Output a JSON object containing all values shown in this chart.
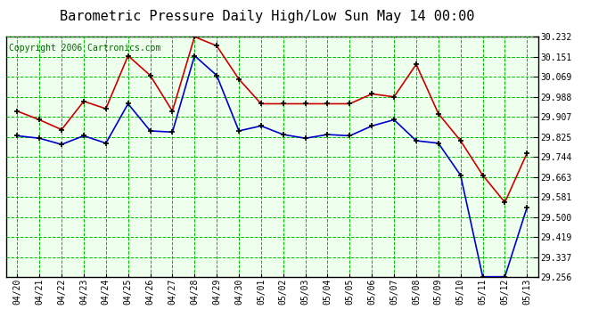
{
  "title": "Barometric Pressure Daily High/Low Sun May 14 00:00",
  "copyright": "Copyright 2006 Cartronics.com",
  "x_labels": [
    "04/20",
    "04/21",
    "04/22",
    "04/23",
    "04/24",
    "04/25",
    "04/26",
    "04/27",
    "04/28",
    "04/29",
    "04/30",
    "05/01",
    "05/02",
    "05/03",
    "05/04",
    "05/05",
    "05/06",
    "05/07",
    "05/08",
    "05/09",
    "05/10",
    "05/11",
    "05/12",
    "05/13"
  ],
  "high_values": [
    29.93,
    29.895,
    29.855,
    29.97,
    29.94,
    30.155,
    30.075,
    29.93,
    30.232,
    30.195,
    30.06,
    29.96,
    29.96,
    29.96,
    29.96,
    29.96,
    30.0,
    29.988,
    30.12,
    29.92,
    29.81,
    29.67,
    29.56,
    29.76
  ],
  "low_values": [
    29.83,
    29.82,
    29.795,
    29.83,
    29.8,
    29.96,
    29.85,
    29.845,
    30.155,
    30.075,
    29.85,
    29.87,
    29.835,
    29.82,
    29.835,
    29.83,
    29.87,
    29.895,
    29.81,
    29.8,
    29.67,
    29.258,
    29.258,
    29.54
  ],
  "y_ticks": [
    29.256,
    29.337,
    29.419,
    29.5,
    29.581,
    29.663,
    29.744,
    29.825,
    29.907,
    29.988,
    30.069,
    30.151,
    30.232
  ],
  "y_min": 29.256,
  "y_max": 30.232,
  "high_color": "#cc0000",
  "low_color": "#0000cc",
  "bg_color": "#ffffff",
  "plot_bg_color": "#eeffee",
  "grid_color": "#00bb00",
  "title_color": "#000000",
  "copyright_color": "#006600",
  "marker": "+",
  "marker_color": "#000000",
  "marker_size": 5,
  "marker_linewidth": 1.2,
  "line_width": 1.2,
  "title_fontsize": 11,
  "tick_fontsize": 7,
  "copyright_fontsize": 7
}
